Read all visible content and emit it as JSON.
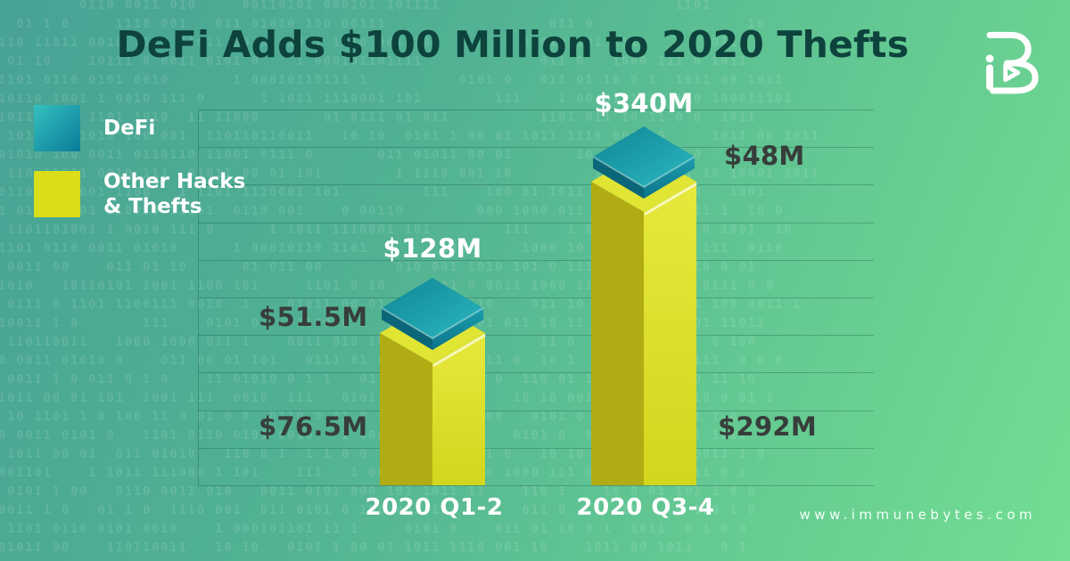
{
  "header": {
    "title": "DeFi Adds $100 Million to 2020 Thefts"
  },
  "brand": {
    "logo_icon": "immunebytes-ib-monogram",
    "website": "www.immunebytes.com"
  },
  "legend": {
    "items": [
      {
        "label": "DeFi",
        "swatch_color_start": "#35c0bf",
        "swatch_color_end": "#0a7b98"
      },
      {
        "label": "Other Hacks\n& Thefts",
        "swatch_color": "#d9dd1a"
      }
    ]
  },
  "chart_data": {
    "type": "bar",
    "stacked": true,
    "title": "DeFi Adds $100 Million to 2020 Thefts",
    "categories": [
      "2020 Q1-2",
      "2020 Q3-4"
    ],
    "series": [
      {
        "name": "DeFi",
        "color": "#1596a7",
        "values": [
          51.5,
          48
        ]
      },
      {
        "name": "Other Hacks & Thefts",
        "color": "#d9dd1e",
        "values": [
          76.5,
          292
        ]
      }
    ],
    "totals": [
      128,
      340
    ],
    "unit": "USD millions",
    "value_labels": {
      "bar1_total": "$128M",
      "bar1_defi": "$51.5M",
      "bar1_other": "$76.5M",
      "bar2_total": "$340M",
      "bar2_defi": "$48M",
      "bar2_other": "$292M"
    },
    "grid": "horizontal gridlines with left axis",
    "legend_position": "top-left"
  },
  "background": {
    "binary_rows": [
      "          0110 0011 010     00110101 000101 101111                          1101",
      "   01 1 0     1110 001   011 01010 100 00111                  011 0                 10",
      " 110 11011 0010 111  01011 00 01 1011 1110 001 10        1 000101101 111       1011",
      "  01 10    10111 0 0011 0101 0    1 000101101111             011 0   1000 111 0 1011",
      " 1101 0110 0101 0010       1 00010110111 1          0101 0   011 01 10 0 1  1011 00 1011",
      " 10110 1001 1 0010 111 0      1 1011 1110001 101        111    1 00 01 1011 110 100011101",
      " 1011 0110 1101 1010  11 11000       01 0111 01 011          1101 011 10 11 0 0  1011",
      "  101011 01010 100 001  110110110011   10 10  0101 1 00 01 1011 1110 001 10     1011 00 1011",
      " 01010 100 0011 0110110 11001 0111 0       011 01011 00 01       10 10   01 1 0     0011 1",
      "  110 11011 0010 111  01011 00 01 101        1 1110 001 10         10 01 10111 10 10001 1011",
      " 0110101 1001 1100   1 1101 1110001 101         111    100 01 1011 110 10001110   1001",
      " 1 01 1  001 110010 11101  0110 001    0 00110        000 1000 011 1      0 0011 1  10 0",
      "  1101101001 1 0010 111 0      1 1011 1110001 101        111    1 00 01 1011 1 0 1001  10",
      " 1101 0110 0011 01010      1 00010110 1101        101      1000 10 10 011 0000 111  0110",
      "  0011 00    011 01 10      01 011 00        010 001 1010 101 0 111   10 100 110 0 01",
      " 1010   10110101 1001 1100 101     1101 0 10    0101 0 0011 1000 1100 11    01 0111 0 0",
      "  0111 0 1101 1100111 0010  1    01011 00 01 101   10 10    011 10 10 0 1   0 1 100 0011 1",
      " 10011 1 0       111    0101 0    1100 0 1  01 011  1101 011 10 11 0 0   100 001 11011",
      "  110110011   1000 1000 011 1    0011 010 10 101 0010 0      11 0   01 101 1 0  0 100",
      " 0 0011 01010 0    011 00 01 101   0111 01 011   1000 111 0  10 1  0 100    0 111  0 0 0",
      "  0011 1 0 011 0 1 0    11 01010 0 1 1   01 1 100 0 111 0  110 01 1011 110 1000 11 10",
      " 1011 00 01 101  1001 111  0010  111   01011 00 01 101    10 10 0011 0101 0   10 0 01 1",
      "  10 1101 1 0 100 11 0 01 0 0  0110 0 01 0 1  11 1  0 100   0101 0  10 0 01 101 1 0",
      " 0 0011 0101 0   1101 0110 0101 0010   1 0001011 0111 1   0101 0  011 01 10 0 1 1011",
      "  1011 00 01  011 01010   110 0 1  1 1 0 0   1100  1 011 0   10 10  0 1 100   0011 1 0",
      " 001101    1 1011 111000 1 101    111   1 00 01 1011 110 1000 111 0   1001   011 0 1",
      "  0101 1 00   0110 0011 010   0011 0101 000 101 1011 11    110 1    10 0 01 101 1 0 0",
      " 0011 1 0   01 1 0  1110 001  011 0101 0 100 001 11        011 0      10    0 110 1 0",
      "  1101 0110 0101 0010    1 000101101 11 1     0101 0    011 01 10 0 1  1011  0 1 0 0",
      " 01011 00    110110011   10 10   0101 1 00 01 1011 1110 001 10    1011 00 1011   0 1"
    ]
  }
}
